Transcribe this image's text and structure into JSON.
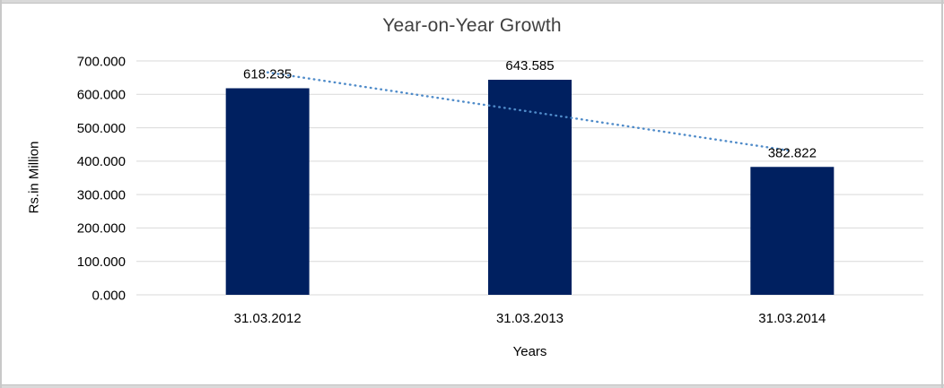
{
  "chart_data": {
    "type": "bar",
    "title": "Year-on-Year Growth",
    "xlabel": "Years",
    "ylabel": "Rs.in Million",
    "categories": [
      "31.03.2012",
      "31.03.2013",
      "31.03.2014"
    ],
    "values": [
      618.235,
      643.585,
      382.822
    ],
    "data_labels": [
      "618.235",
      "643.585",
      "382.822"
    ],
    "ylim": [
      0,
      700
    ],
    "ytick_step": 100,
    "ytick_labels": [
      "0.000",
      "100.000",
      "200.000",
      "300.000",
      "400.000",
      "500.000",
      "600.000",
      "700.000"
    ],
    "grid": true,
    "legend_position": "none",
    "bar_color": "#002060",
    "gridline_color": "#d9d9d9",
    "label_color": "#000000",
    "title_color": "#404040",
    "trendline": {
      "type": "linear",
      "style": "dotted",
      "color": "#4F8BC9",
      "start_value": 665.9,
      "end_value": 430.5
    }
  },
  "frame": {
    "edge_color": "#d9d9d9"
  }
}
